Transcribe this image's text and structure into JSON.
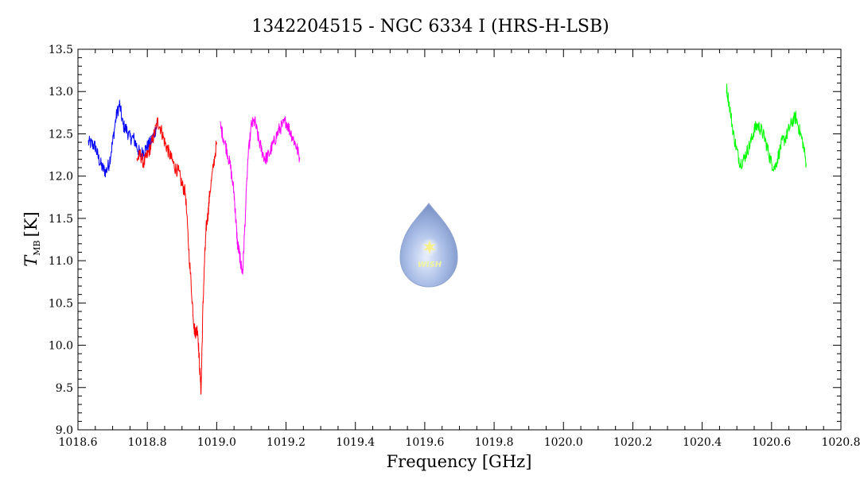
{
  "chart_data": {
    "type": "line",
    "title": "1342204515 - NGC 6334 I (HRS-H-LSB)",
    "xlabel": "Frequency [GHz]",
    "ylabel": {
      "main": "T",
      "sub": "MB",
      "unit": "[K]"
    },
    "xlim": [
      1018.6,
      1020.8
    ],
    "ylim": [
      9.0,
      13.5
    ],
    "xticks": [
      "1018.6",
      "1018.8",
      "1019.0",
      "1019.2",
      "1019.4",
      "1019.6",
      "1019.8",
      "1020.0",
      "1020.2",
      "1020.4",
      "1020.6",
      "1020.8"
    ],
    "yticks": [
      "9.0",
      "9.5",
      "10.0",
      "10.5",
      "11.0",
      "11.5",
      "12.0",
      "12.5",
      "13.0",
      "13.5"
    ],
    "grid": false,
    "logo_text": "WISH",
    "series": [
      {
        "color": "#0000ff",
        "x": [
          1018.63,
          1018.64,
          1018.65,
          1018.66,
          1018.67,
          1018.68,
          1018.69,
          1018.7,
          1018.71,
          1018.72,
          1018.73,
          1018.74,
          1018.75,
          1018.76,
          1018.77,
          1018.78,
          1018.79,
          1018.8,
          1018.81,
          1018.82,
          1018.83
        ],
        "y": [
          12.4,
          12.38,
          12.35,
          12.2,
          12.1,
          12.05,
          12.15,
          12.4,
          12.7,
          12.85,
          12.6,
          12.55,
          12.45,
          12.45,
          12.35,
          12.25,
          12.3,
          12.35,
          12.4,
          12.5,
          12.65
        ]
      },
      {
        "color": "#ff0000",
        "x": [
          1018.77,
          1018.78,
          1018.79,
          1018.8,
          1018.81,
          1018.82,
          1018.83,
          1018.84,
          1018.85,
          1018.86,
          1018.87,
          1018.88,
          1018.89,
          1018.9,
          1018.91,
          1018.92,
          1018.93,
          1018.935,
          1018.94,
          1018.945,
          1018.95,
          1018.955,
          1018.96,
          1018.965,
          1018.97,
          1018.975,
          1018.98,
          1018.99,
          1019.0
        ],
        "y": [
          12.2,
          12.25,
          12.15,
          12.25,
          12.35,
          12.5,
          12.65,
          12.55,
          12.4,
          12.3,
          12.2,
          12.1,
          12.05,
          11.9,
          11.8,
          11.1,
          10.5,
          10.2,
          10.15,
          10.2,
          9.8,
          9.45,
          10.4,
          11.0,
          11.4,
          11.55,
          11.8,
          12.1,
          12.4
        ]
      },
      {
        "color": "#ff00ff",
        "x": [
          1019.01,
          1019.02,
          1019.03,
          1019.04,
          1019.05,
          1019.055,
          1019.06,
          1019.065,
          1019.07,
          1019.075,
          1019.08,
          1019.09,
          1019.1,
          1019.11,
          1019.12,
          1019.13,
          1019.14,
          1019.15,
          1019.16,
          1019.17,
          1019.18,
          1019.19,
          1019.2,
          1019.21,
          1019.22,
          1019.23,
          1019.24
        ],
        "y": [
          12.6,
          12.45,
          12.3,
          12.1,
          11.8,
          11.5,
          11.2,
          11.1,
          10.95,
          10.85,
          11.3,
          12.2,
          12.6,
          12.65,
          12.45,
          12.3,
          12.2,
          12.25,
          12.35,
          12.45,
          12.55,
          12.6,
          12.65,
          12.55,
          12.45,
          12.35,
          12.2
        ]
      },
      {
        "color": "#00ff00",
        "x": [
          1020.47,
          1020.48,
          1020.49,
          1020.5,
          1020.51,
          1020.52,
          1020.53,
          1020.54,
          1020.55,
          1020.56,
          1020.57,
          1020.58,
          1020.59,
          1020.6,
          1020.61,
          1020.62,
          1020.63,
          1020.64,
          1020.65,
          1020.66,
          1020.67,
          1020.68,
          1020.69,
          1020.7
        ],
        "y": [
          13.05,
          12.8,
          12.5,
          12.3,
          12.15,
          12.2,
          12.3,
          12.4,
          12.55,
          12.6,
          12.55,
          12.45,
          12.3,
          12.15,
          12.1,
          12.25,
          12.4,
          12.45,
          12.55,
          12.65,
          12.7,
          12.55,
          12.4,
          12.15
        ]
      }
    ]
  }
}
